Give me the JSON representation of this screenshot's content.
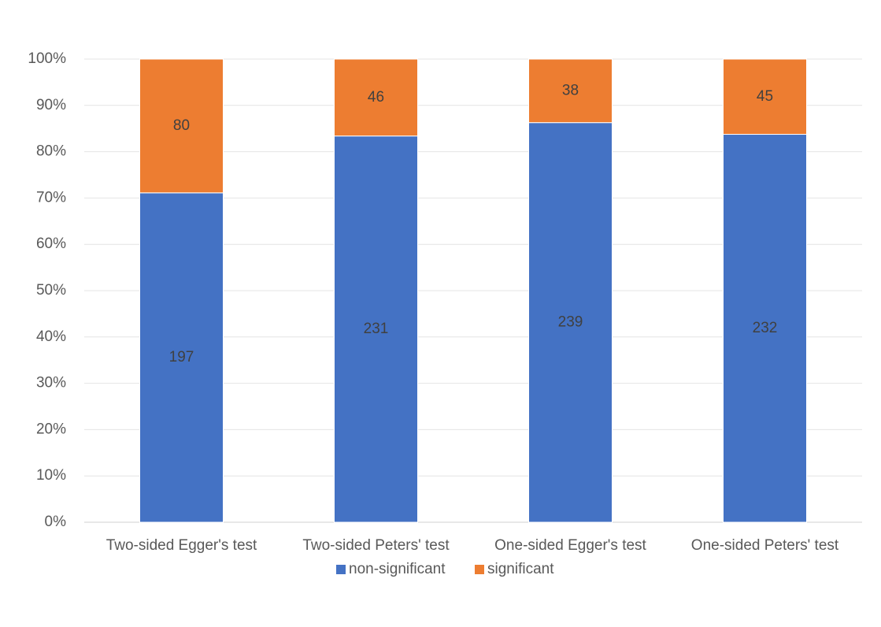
{
  "chart_data": {
    "type": "bar",
    "stacking": "percent",
    "categories": [
      "Two-sided Egger's test",
      "Two-sided Peters' test",
      "One-sided Egger's test",
      "One-sided Peters' test"
    ],
    "series": [
      {
        "name": "non-significant",
        "color": "#4472c4",
        "values": [
          197,
          231,
          239,
          232
        ]
      },
      {
        "name": "significant",
        "color": "#ed7d31",
        "values": [
          80,
          46,
          38,
          45
        ]
      }
    ],
    "ylim": [
      0,
      100
    ],
    "yticks": [
      {
        "value": 0,
        "label": "0%"
      },
      {
        "value": 10,
        "label": "10%"
      },
      {
        "value": 20,
        "label": "20%"
      },
      {
        "value": 30,
        "label": "30%"
      },
      {
        "value": 40,
        "label": "40%"
      },
      {
        "value": 50,
        "label": "50%"
      },
      {
        "value": 60,
        "label": "60%"
      },
      {
        "value": 70,
        "label": "70%"
      },
      {
        "value": 80,
        "label": "80%"
      },
      {
        "value": 90,
        "label": "90%"
      },
      {
        "value": 100,
        "label": "100%"
      }
    ],
    "grid": true,
    "legend": "bottom"
  }
}
